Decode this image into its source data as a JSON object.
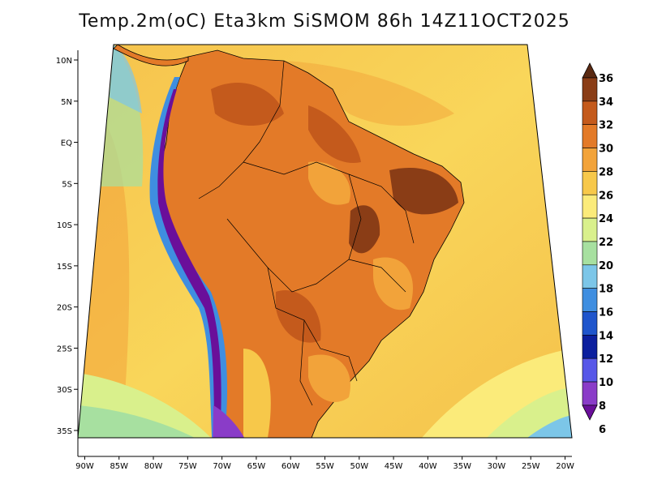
{
  "title": "Temp.2m(oC) Eta3km SiSMOM 86h 14Z11OCT2025",
  "axes": {
    "lat_labels": [
      "10N",
      "5N",
      "EQ",
      "5S",
      "10S",
      "15S",
      "20S",
      "25S",
      "30S",
      "35S"
    ],
    "lat_values": [
      10,
      5,
      0,
      -5,
      -10,
      -15,
      -20,
      -25,
      -30,
      -35
    ],
    "lon_labels": [
      "90W",
      "85W",
      "80W",
      "75W",
      "70W",
      "65W",
      "60W",
      "55W",
      "50W",
      "45W",
      "40W",
      "35W",
      "30W",
      "25W",
      "20W"
    ],
    "lon_values": [
      -90,
      -85,
      -80,
      -75,
      -70,
      -65,
      -60,
      -55,
      -50,
      -45,
      -40,
      -35,
      -30,
      -25,
      -20
    ],
    "lat_range": [
      -38,
      12
    ],
    "lon_range": [
      -91,
      -19
    ]
  },
  "colorbar": {
    "labels": [
      "36",
      "34",
      "32",
      "30",
      "28",
      "26",
      "24",
      "22",
      "20",
      "18",
      "16",
      "14",
      "12",
      "10",
      "8",
      "6"
    ],
    "colors": [
      "#5a2a12",
      "#8a3d16",
      "#c45a1c",
      "#e37a28",
      "#f2a33a",
      "#f7c84a",
      "#fbeb7a",
      "#d9f08c",
      "#a7e0a0",
      "#7cc6e8",
      "#3f8ee0",
      "#1f55cc",
      "#0c1f9e",
      "#5757e8",
      "#8a3cc8",
      "#6a0f9a"
    ]
  }
}
